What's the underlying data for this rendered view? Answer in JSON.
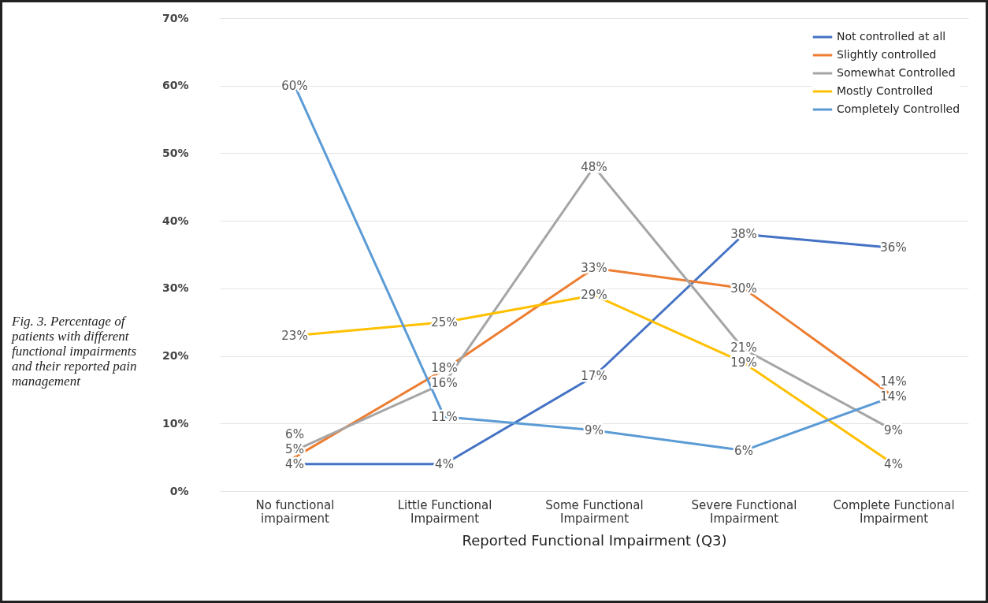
{
  "chart_data": {
    "type": "line",
    "xlabel": "Reported Functional Impairment (Q3)",
    "annotations": [
      "Fig. 3. Percentage of patients with different functional impairments and their reported pain management"
    ],
    "categories": [
      "No functional impairment",
      "Little Functional Impairment",
      "Some Functional Impairment",
      "Severe Functional Impairment",
      "Complete Functional Impairment"
    ],
    "ylim": [
      0,
      70
    ],
    "yticks": [
      {
        "value": 0,
        "label": "0%"
      },
      {
        "value": 10,
        "label": "10%"
      },
      {
        "value": 20,
        "label": "20%"
      },
      {
        "value": 30,
        "label": "30%"
      },
      {
        "value": 40,
        "label": "40%"
      },
      {
        "value": 50,
        "label": "50%"
      },
      {
        "value": 60,
        "label": "60%"
      },
      {
        "value": 70,
        "label": "70%"
      }
    ],
    "grid": "y",
    "legend": "top right",
    "series": [
      {
        "name": "Not controlled at all",
        "color": "#4472c4",
        "values": [
          4,
          4,
          17,
          38,
          36
        ],
        "value_labels": [
          "4%",
          "4%",
          "17%",
          "38%",
          "36%"
        ]
      },
      {
        "name": "Slightly controlled",
        "color": "#ed7d31",
        "values": [
          5,
          18,
          33,
          30,
          14
        ],
        "value_labels": [
          "5%",
          "18%",
          "33%",
          "30%",
          "14%"
        ]
      },
      {
        "name": "Somewhat Controlled",
        "color": "#a5a5a5",
        "values": [
          6,
          16,
          48,
          21,
          9
        ],
        "value_labels": [
          "6%",
          "16%",
          "48%",
          "21%",
          "9%"
        ]
      },
      {
        "name": "Mostly Controlled",
        "color": "#ffc000",
        "values": [
          23,
          25,
          29,
          19,
          4
        ],
        "value_labels": [
          "23%",
          "25%",
          "29%",
          "19%",
          "4%"
        ]
      },
      {
        "name": "Completely Controlled",
        "color": "#5b9bd5",
        "values": [
          60,
          11,
          9,
          6,
          14
        ],
        "value_labels": [
          "60%",
          "11%",
          "9%",
          "6%",
          "14%"
        ]
      }
    ]
  }
}
